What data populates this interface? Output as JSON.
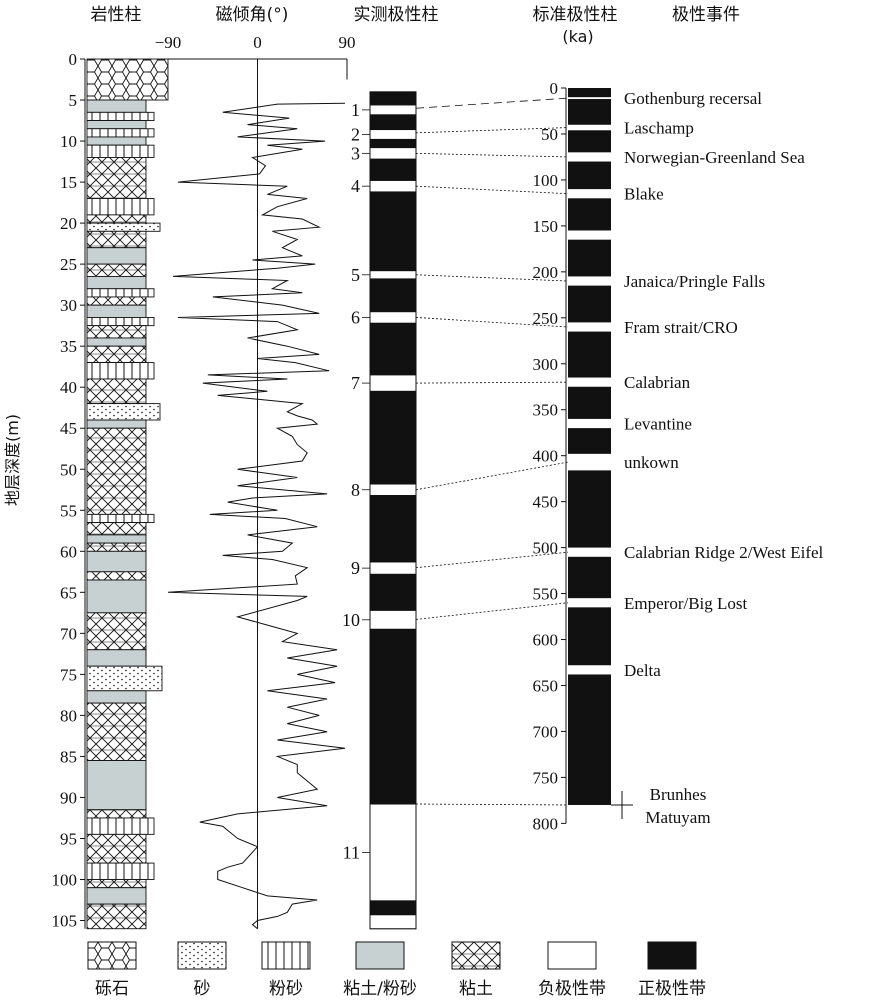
{
  "chart_data": {
    "type": "stratigraphic-magnetostratigraphy",
    "headers": {
      "lithology": "岩性柱",
      "inclination": "磁倾角(°)",
      "measured": "实测极性柱",
      "standard": "标准极性柱",
      "standard_unit": "(ka)",
      "events": "极性事件"
    },
    "depth_axis": {
      "label": "地层深度(m)",
      "ticks": [
        0,
        5,
        10,
        15,
        20,
        25,
        30,
        35,
        40,
        45,
        50,
        55,
        60,
        65,
        70,
        75,
        80,
        85,
        90,
        95,
        100,
        105
      ],
      "range": [
        0,
        106
      ]
    },
    "inclination_axis": {
      "ticks": [
        "−90",
        "0",
        "90"
      ],
      "range": [
        -90,
        90
      ],
      "values": [
        [
          5.4,
          88
        ],
        [
          5.5,
          20
        ],
        [
          6.5,
          -35
        ],
        [
          7.2,
          32
        ],
        [
          8,
          -10
        ],
        [
          8.5,
          40
        ],
        [
          9.5,
          -20
        ],
        [
          10,
          68
        ],
        [
          10.5,
          10
        ],
        [
          11,
          45
        ],
        [
          12,
          -5
        ],
        [
          13,
          8
        ],
        [
          14,
          2
        ],
        [
          15,
          -80
        ],
        [
          15.5,
          30
        ],
        [
          16.5,
          10
        ],
        [
          17,
          50
        ],
        [
          18,
          20
        ],
        [
          19,
          5
        ],
        [
          19.5,
          45
        ],
        [
          20.5,
          62
        ],
        [
          21,
          15
        ],
        [
          22,
          40
        ],
        [
          23,
          25
        ],
        [
          24,
          45
        ],
        [
          24.5,
          -5
        ],
        [
          25,
          58
        ],
        [
          25.5,
          20
        ],
        [
          26.5,
          -85
        ],
        [
          27,
          30
        ],
        [
          28,
          15
        ],
        [
          28.5,
          45
        ],
        [
          29,
          -45
        ],
        [
          30,
          25
        ],
        [
          31,
          62
        ],
        [
          31.5,
          -80
        ],
        [
          32,
          20
        ],
        [
          33,
          40
        ],
        [
          34,
          -10
        ],
        [
          35,
          30
        ],
        [
          36,
          62
        ],
        [
          36.5,
          0
        ],
        [
          37,
          38
        ],
        [
          38,
          72
        ],
        [
          38.5,
          -50
        ],
        [
          39,
          30
        ],
        [
          39.5,
          -55
        ],
        [
          40.5,
          10
        ],
        [
          41,
          -40
        ],
        [
          42,
          45
        ],
        [
          43,
          30
        ],
        [
          43.5,
          40
        ],
        [
          44,
          55
        ],
        [
          44.5,
          60
        ],
        [
          45,
          20
        ],
        [
          46,
          35
        ],
        [
          47,
          40
        ],
        [
          48,
          50
        ],
        [
          49,
          45
        ],
        [
          50,
          -20
        ],
        [
          51,
          40
        ],
        [
          52,
          -20
        ],
        [
          53,
          70
        ],
        [
          53.5,
          -5
        ],
        [
          54,
          -30
        ],
        [
          55,
          20
        ],
        [
          55.5,
          -48
        ],
        [
          56,
          28
        ],
        [
          57,
          60
        ],
        [
          58,
          -10
        ],
        [
          59,
          35
        ],
        [
          60,
          25
        ],
        [
          60.5,
          -35
        ],
        [
          61,
          15
        ],
        [
          62,
          50
        ],
        [
          63,
          38
        ],
        [
          64,
          40
        ],
        [
          65,
          -90
        ],
        [
          65.5,
          50
        ],
        [
          66,
          40
        ],
        [
          68,
          -20
        ],
        [
          69,
          10
        ],
        [
          70,
          40
        ],
        [
          71,
          25
        ],
        [
          72,
          80
        ],
        [
          73,
          30
        ],
        [
          74,
          80
        ],
        [
          75,
          40
        ],
        [
          76,
          78
        ],
        [
          77,
          10
        ],
        [
          78,
          70
        ],
        [
          79,
          30
        ],
        [
          80,
          62
        ],
        [
          81,
          30
        ],
        [
          82,
          70
        ],
        [
          83,
          20
        ],
        [
          84,
          88
        ],
        [
          85,
          20
        ],
        [
          86,
          40
        ],
        [
          87,
          40
        ],
        [
          88,
          50
        ],
        [
          89,
          60
        ],
        [
          90,
          20
        ],
        [
          91,
          70
        ],
        [
          92,
          -20
        ],
        [
          93,
          -58
        ],
        [
          93.5,
          -35
        ],
        [
          95,
          -20
        ],
        [
          96,
          0
        ],
        [
          98,
          -15
        ],
        [
          98.5,
          -30
        ],
        [
          99,
          -40
        ],
        [
          100,
          -40
        ],
        [
          101,
          -15
        ],
        [
          102,
          10
        ],
        [
          102.5,
          60
        ],
        [
          103,
          35
        ],
        [
          104,
          30
        ],
        [
          104.5,
          20
        ],
        [
          105,
          0
        ],
        [
          105.5,
          -5
        ],
        [
          106,
          0
        ]
      ]
    },
    "lithology_layers": [
      {
        "top": 0,
        "bottom": 5,
        "type": "gravel"
      },
      {
        "top": 5,
        "bottom": 6.5,
        "type": "clay-silt"
      },
      {
        "top": 6.5,
        "bottom": 7.5,
        "type": "silt"
      },
      {
        "top": 7.5,
        "bottom": 8.5,
        "type": "clay-silt"
      },
      {
        "top": 8.5,
        "bottom": 9.5,
        "type": "silt"
      },
      {
        "top": 9.5,
        "bottom": 10.5,
        "type": "clay-silt"
      },
      {
        "top": 10.5,
        "bottom": 12,
        "type": "silt"
      },
      {
        "top": 12,
        "bottom": 17,
        "type": "clay"
      },
      {
        "top": 17,
        "bottom": 19,
        "type": "silt"
      },
      {
        "top": 19,
        "bottom": 20,
        "type": "clay"
      },
      {
        "top": 20,
        "bottom": 21,
        "type": "sand"
      },
      {
        "top": 21,
        "bottom": 23,
        "type": "clay"
      },
      {
        "top": 23,
        "bottom": 25,
        "type": "clay-silt"
      },
      {
        "top": 25,
        "bottom": 26.5,
        "type": "clay"
      },
      {
        "top": 26.5,
        "bottom": 28,
        "type": "clay-silt"
      },
      {
        "top": 28,
        "bottom": 29,
        "type": "silt"
      },
      {
        "top": 29,
        "bottom": 30,
        "type": "clay"
      },
      {
        "top": 30,
        "bottom": 31.5,
        "type": "clay-silt"
      },
      {
        "top": 31.5,
        "bottom": 32.5,
        "type": "silt"
      },
      {
        "top": 32.5,
        "bottom": 34,
        "type": "clay"
      },
      {
        "top": 34,
        "bottom": 35,
        "type": "clay-silt"
      },
      {
        "top": 35,
        "bottom": 37,
        "type": "clay"
      },
      {
        "top": 37,
        "bottom": 39,
        "type": "silt"
      },
      {
        "top": 39,
        "bottom": 42,
        "type": "clay"
      },
      {
        "top": 42,
        "bottom": 44,
        "type": "sand"
      },
      {
        "top": 44,
        "bottom": 45,
        "type": "clay-silt"
      },
      {
        "top": 45,
        "bottom": 55.5,
        "type": "clay"
      },
      {
        "top": 55.5,
        "bottom": 56.5,
        "type": "silt"
      },
      {
        "top": 56.5,
        "bottom": 58,
        "type": "clay"
      },
      {
        "top": 58,
        "bottom": 59,
        "type": "clay-silt"
      },
      {
        "top": 59,
        "bottom": 60,
        "type": "clay"
      },
      {
        "top": 60,
        "bottom": 62.5,
        "type": "clay-silt"
      },
      {
        "top": 62.5,
        "bottom": 63.5,
        "type": "clay"
      },
      {
        "top": 63.5,
        "bottom": 67.5,
        "type": "clay-silt"
      },
      {
        "top": 67.5,
        "bottom": 72,
        "type": "clay"
      },
      {
        "top": 72,
        "bottom": 74,
        "type": "clay-silt"
      },
      {
        "top": 74,
        "bottom": 77,
        "type": "sand"
      },
      {
        "top": 77,
        "bottom": 78.5,
        "type": "clay-silt"
      },
      {
        "top": 78.5,
        "bottom": 85.5,
        "type": "clay"
      },
      {
        "top": 85.5,
        "bottom": 91.5,
        "type": "clay-silt"
      },
      {
        "top": 91.5,
        "bottom": 92.5,
        "type": "clay"
      },
      {
        "top": 92.5,
        "bottom": 94.5,
        "type": "silt"
      },
      {
        "top": 94.5,
        "bottom": 98,
        "type": "clay"
      },
      {
        "top": 98,
        "bottom": 100,
        "type": "silt"
      },
      {
        "top": 100,
        "bottom": 101,
        "type": "clay"
      },
      {
        "top": 101,
        "bottom": 103,
        "type": "clay-silt"
      },
      {
        "top": 103,
        "bottom": 106,
        "type": "clay"
      }
    ],
    "measured_polarity": {
      "range": [
        4,
        106
      ],
      "reversed_intervals": [
        {
          "top": 5.6,
          "bottom": 6.8,
          "label": "1"
        },
        {
          "top": 8.6,
          "bottom": 9.8,
          "label": "2"
        },
        {
          "top": 10.8,
          "bottom": 12.2,
          "label": "3"
        },
        {
          "top": 14.8,
          "bottom": 16.2,
          "label": "4"
        },
        {
          "top": 25.8,
          "bottom": 26.8,
          "label": "5"
        },
        {
          "top": 30.8,
          "bottom": 32.2,
          "label": "6"
        },
        {
          "top": 38.5,
          "bottom": 40.5,
          "label": "7"
        },
        {
          "top": 51.8,
          "bottom": 53.2,
          "label": "8"
        },
        {
          "top": 61.3,
          "bottom": 62.8,
          "label": "9"
        },
        {
          "top": 67.2,
          "bottom": 69.5,
          "label": "10"
        },
        {
          "top": 90.8,
          "bottom": 102.6,
          "label": "11"
        },
        {
          "top": 104.3,
          "bottom": 106,
          "label": ""
        }
      ]
    },
    "standard_polarity": {
      "range": [
        0,
        780
      ],
      "ticks": [
        0,
        50,
        100,
        150,
        200,
        250,
        300,
        350,
        400,
        450,
        500,
        550,
        600,
        650,
        700,
        750,
        800
      ],
      "reversed_intervals": [
        [
          10,
          12
        ],
        [
          40,
          46
        ],
        [
          70,
          80
        ],
        [
          110,
          120
        ],
        [
          155,
          165
        ],
        [
          205,
          215
        ],
        [
          255,
          265
        ],
        [
          315,
          325
        ],
        [
          360,
          370
        ],
        [
          398,
          416
        ],
        [
          500,
          510
        ],
        [
          555,
          565
        ],
        [
          628,
          638
        ]
      ]
    },
    "events": [
      {
        "name": "Gothenburg recersal",
        "age": 11,
        "depth": 6
      },
      {
        "name": "Laschamp",
        "age": 43,
        "depth": 9
      },
      {
        "name": "Norwegian-Greenland Sea",
        "age": 75,
        "depth": 11.5
      },
      {
        "name": "Blake",
        "age": 115,
        "depth": 15.5
      },
      {
        "name": "Janaica/Pringle Falls",
        "age": 210,
        "depth": 26.3
      },
      {
        "name": "Fram strait/CRO",
        "age": 260,
        "depth": 31.5
      },
      {
        "name": "Calabrian",
        "age": 320,
        "depth": 39.5
      },
      {
        "name": "Levantine",
        "age": 365,
        "depth": null
      },
      {
        "name": "unkown",
        "age": 407,
        "depth": 52.5
      },
      {
        "name": "Calabrian Ridge 2/West Eifel",
        "age": 505,
        "depth": 62
      },
      {
        "name": "Emperor/Big Lost",
        "age": 560,
        "depth": 68.3
      },
      {
        "name": "Delta",
        "age": 633,
        "depth": null
      }
    ],
    "boundary": {
      "age": 780,
      "upper": "Brunhes",
      "lower": "Matuyam"
    },
    "legend": [
      {
        "key": "gravel",
        "label": "砾石"
      },
      {
        "key": "sand",
        "label": "砂"
      },
      {
        "key": "silt",
        "label": "粉砂"
      },
      {
        "key": "clay-silt",
        "label": "粘土/粉砂"
      },
      {
        "key": "clay",
        "label": "粘土"
      },
      {
        "key": "negative",
        "label": "负极性带"
      },
      {
        "key": "positive",
        "label": "正极性带"
      }
    ],
    "colors": {
      "black": "#111111",
      "clay_silt_fill": "#c8d1d1",
      "white": "#ffffff"
    }
  }
}
